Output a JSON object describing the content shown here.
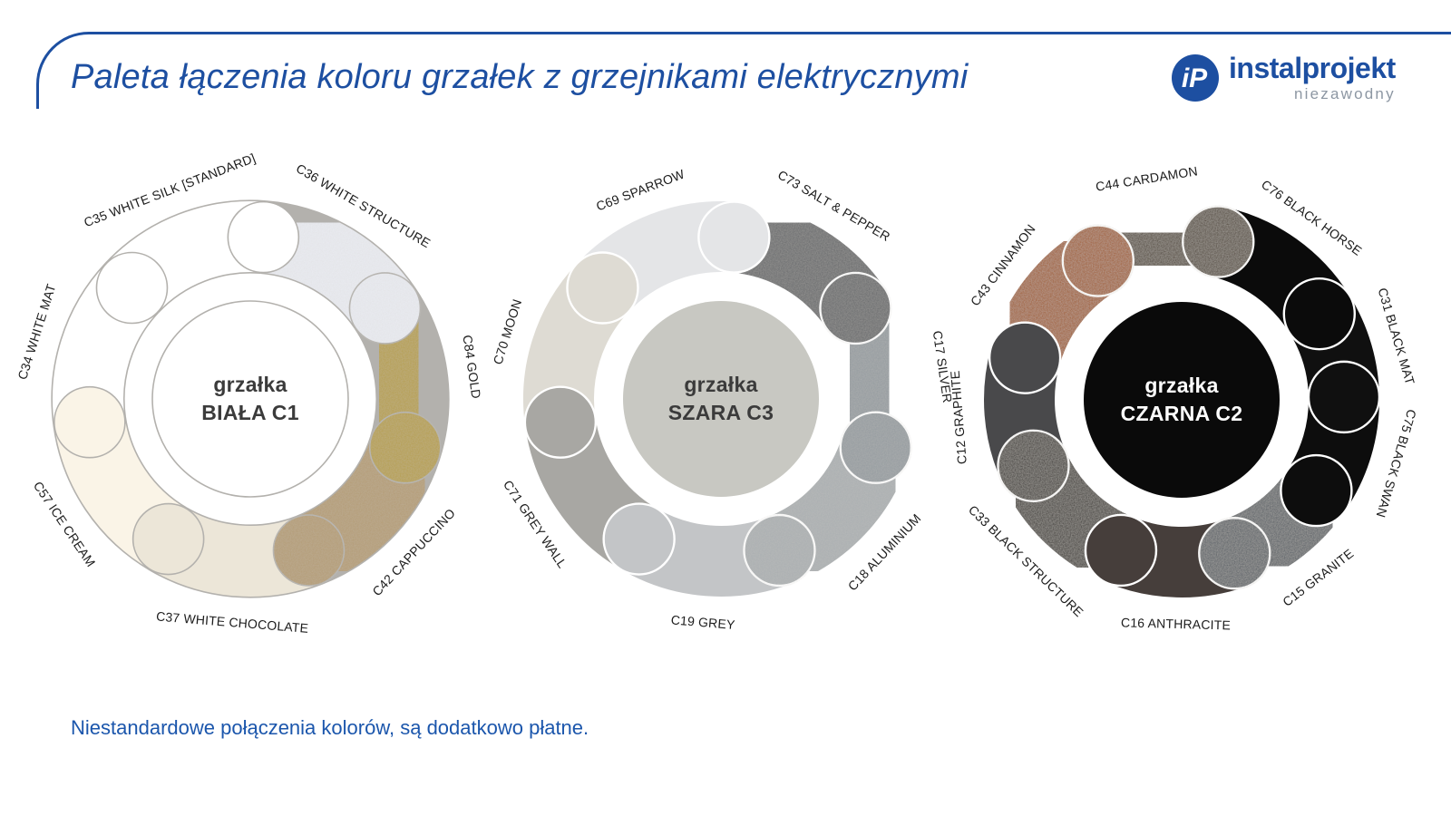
{
  "header": {
    "title": "Paleta łączenia koloru grzałek z grzejnikami elektrycznymi",
    "accent_color": "#1d4fa1"
  },
  "logo": {
    "monogram": "iP",
    "brand": "instalprojekt",
    "tagline": "niezawodny",
    "brand_color": "#1d4fa1",
    "tagline_color": "#8d97a3"
  },
  "footnote": {
    "text": "Niestandardowe połączenia kolorów, są dodatkowo płatne.",
    "color": "#1b56ac"
  },
  "chart_data": [
    {
      "type": "pie",
      "variant": "donut",
      "title": "grzałka BIAŁA C1",
      "center_lines": [
        "grzałka",
        "BIAŁA C1"
      ],
      "center_fill": "#ffffff",
      "center_stroke": "#b3b1ad",
      "center_text_color": "#3b3b3b",
      "separator_color": "#b3b1ad",
      "separator_width": 1.6,
      "texture_strength": 0.3,
      "start_angle": 85.4,
      "legend_position": "around",
      "segments": [
        {
          "label": "C36 WHITE STRUCTURE",
          "color": "#eaecf2",
          "textured": true,
          "extent": 51.43
        },
        {
          "label": "C84 GOLD",
          "color": "#b59e4a",
          "textured": true,
          "extent": 51.43
        },
        {
          "label": "C42 CAPPUCCINO",
          "color": "#b39b73",
          "textured": true,
          "extent": 51.43
        },
        {
          "label": "C37 WHITE CHOCOLATE",
          "color": "#ece6d8",
          "textured": false,
          "extent": 51.43
        },
        {
          "label": "C57 ICE CREAM",
          "color": "#faf4e7",
          "textured": false,
          "extent": 51.43
        },
        {
          "label": "C34 WHITE MAT",
          "color": "#ffffff",
          "textured": false,
          "extent": 51.43
        },
        {
          "label": "C35 WHITE SILK [STANDARD]",
          "color": "#ffffff",
          "textured": false,
          "extent": 51.42
        }
      ]
    },
    {
      "type": "pie",
      "variant": "donut",
      "title": "grzałka SZARA C3",
      "center_lines": [
        "grzałka",
        "SZARA C3"
      ],
      "center_fill": "#c8c8c2",
      "center_stroke": null,
      "center_text_color": "#3b3b3b",
      "separator_color": "#ffffff",
      "separator_width": 2.4,
      "texture_strength": 0.35,
      "start_angle": 85.4,
      "legend_position": "around",
      "segments": [
        {
          "label": "C73 SALT & PEPPER",
          "color": "#646669",
          "textured": true,
          "extent": 51.43
        },
        {
          "label": "C17 SILVER",
          "color": "#939a9f",
          "textured": true,
          "extent": 51.43
        },
        {
          "label": "C18 ALUMINIUM",
          "color": "#a9aeb1",
          "textured": true,
          "extent": 51.43
        },
        {
          "label": "C19 GREY",
          "color": "#c3c5c7",
          "textured": false,
          "extent": 51.43
        },
        {
          "label": "C71 GREY WALL",
          "color": "#a8a7a3",
          "textured": false,
          "extent": 51.43
        },
        {
          "label": "C70 MOON",
          "color": "#dedbd3",
          "textured": false,
          "extent": 51.43
        },
        {
          "label": "C69 SPARROW",
          "color": "#e4e5e7",
          "textured": false,
          "extent": 51.42
        }
      ]
    },
    {
      "type": "pie",
      "variant": "donut",
      "title": "grzałka CZARNA C2",
      "center_lines": [
        "grzałka",
        "CZARNA C2"
      ],
      "center_fill": "#0a0a0a",
      "center_stroke": null,
      "center_text_color": "#ffffff",
      "separator_color": "#ffffff",
      "separator_width": 2.4,
      "texture_strength": 0.5,
      "start_angle": 121,
      "legend_position": "around",
      "segments": [
        {
          "label": "C44 CARDAMON",
          "color": "#4a3e31",
          "textured": true,
          "extent": 44
        },
        {
          "label": "C76 BLACK HORSE",
          "color": "#0b0b0b",
          "textured": false,
          "extent": 45
        },
        {
          "label": "C31 BLACK MAT",
          "color": "#101010",
          "textured": false,
          "extent": 31
        },
        {
          "label": "C75 BLACK SWAN",
          "color": "#0d0d0d",
          "textured": false,
          "extent": 35
        },
        {
          "label": "C15 GRANITE",
          "color": "#50575f",
          "textured": true,
          "extent": 37
        },
        {
          "label": "C16 ANTHRACITE",
          "color": "#463e3b",
          "textured": false,
          "extent": 41
        },
        {
          "label": "C33 BLACK STRUCTURE",
          "color": "#2d2926",
          "textured": true,
          "extent": 44
        },
        {
          "label": "C12 GRAPHITE",
          "color": "#49494b",
          "textured": false,
          "extent": 39
        },
        {
          "label": "C43 CINNAMON",
          "color": "#9e5519",
          "textured": true,
          "extent": 44
        }
      ]
    }
  ]
}
